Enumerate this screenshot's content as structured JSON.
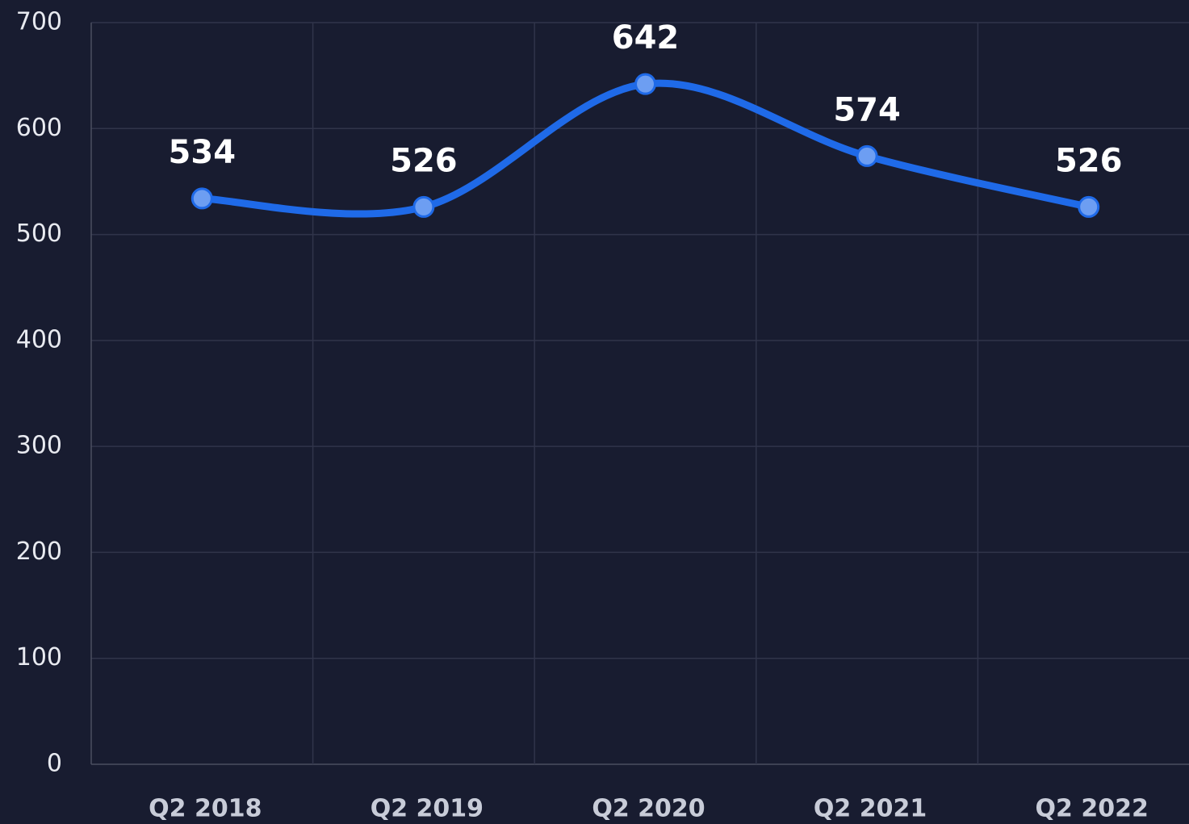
{
  "chart_data": {
    "type": "line",
    "categories": [
      "Q2 2018",
      "Q2 2019",
      "Q2 2020",
      "Q2 2021",
      "Q2 2022"
    ],
    "series": [
      {
        "color": "#1f6ae8",
        "values": [
          534,
          526,
          642,
          574,
          526
        ]
      }
    ],
    "ylim": [
      0,
      700
    ],
    "yticks": [
      0,
      100,
      200,
      300,
      400,
      500,
      600,
      700
    ],
    "grid": true
  }
}
